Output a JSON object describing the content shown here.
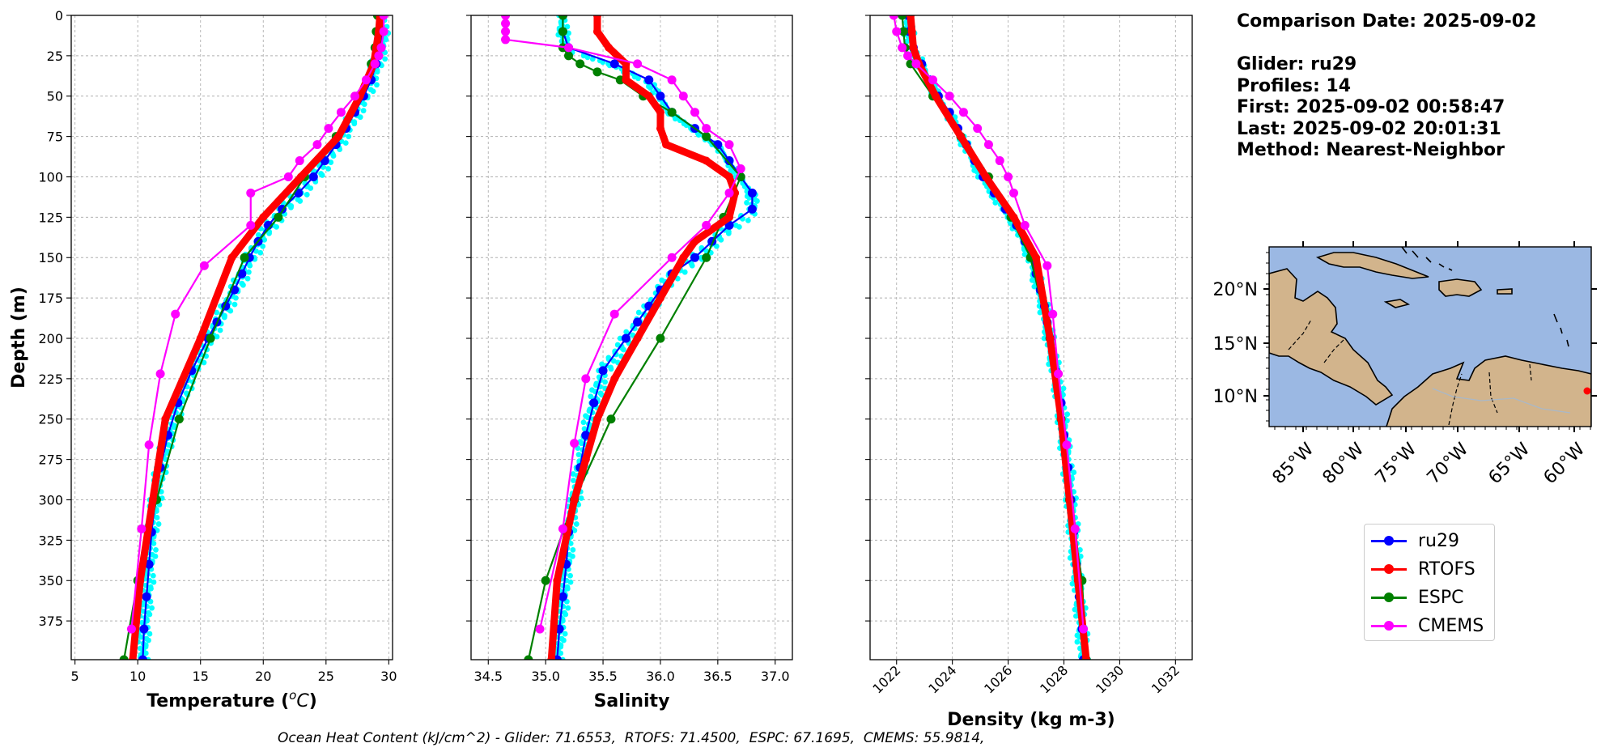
{
  "info": {
    "comparison_date": "Comparison Date: 2025-09-02",
    "glider": "Glider: ru29",
    "profiles": "Profiles: 14",
    "first": "First: 2025-09-02 00:58:47",
    "last": "Last: 2025-09-02 20:01:31",
    "method": "Method: Nearest-Neighbor"
  },
  "footer": "Ocean Heat Content (kJ/cm^2) - Glider: 71.6553,  RTOFS: 71.4500,  ESPC: 67.1695,  CMEMS: 55.9814,",
  "legend": [
    {
      "label": "ru29",
      "color": "#0000ff"
    },
    {
      "label": "RTOFS",
      "color": "#ff0000"
    },
    {
      "label": "ESPC",
      "color": "#008000"
    },
    {
      "label": "CMEMS",
      "color": "#ff00ff"
    }
  ],
  "colors": {
    "glider_raw": "#00ffff",
    "grid": "#b0b0b0",
    "ocean": "#9bb8e3",
    "land": "#d2b48c"
  },
  "chart_data": [
    {
      "type": "line",
      "xlabel": "Temperature ($^oC$)",
      "ylabel": "Depth (m)",
      "xlim": [
        4.7,
        30.3
      ],
      "ylim": [
        399,
        0
      ],
      "x_ticks": [
        "5",
        "10",
        "15",
        "20",
        "25",
        "30"
      ],
      "y_ticks": [
        "0",
        "25",
        "50",
        "75",
        "100",
        "125",
        "150",
        "175",
        "200",
        "225",
        "250",
        "275",
        "300",
        "325",
        "350",
        "375"
      ],
      "grid": true,
      "series": [
        {
          "name": "ru29",
          "depth": [
            0,
            10,
            20,
            30,
            40,
            50,
            60,
            70,
            80,
            90,
            100,
            110,
            120,
            130,
            140,
            150,
            160,
            170,
            180,
            190,
            200,
            220,
            240,
            260,
            280,
            300,
            320,
            340,
            360,
            380,
            399
          ],
          "values": [
            29.5,
            29.5,
            29.4,
            29.0,
            28.6,
            28.0,
            27.3,
            26.6,
            25.8,
            24.9,
            24.0,
            22.8,
            21.5,
            20.4,
            19.6,
            18.9,
            18.3,
            17.7,
            17.0,
            16.3,
            15.6,
            14.3,
            13.2,
            12.4,
            11.8,
            11.4,
            11.1,
            10.9,
            10.7,
            10.5,
            10.4
          ]
        },
        {
          "name": "RTOFS",
          "depth": [
            0,
            10,
            20,
            30,
            50,
            75,
            100,
            125,
            150,
            200,
            250,
            300,
            350,
            399
          ],
          "values": [
            29.3,
            29.2,
            29.0,
            28.8,
            27.7,
            26.0,
            23.0,
            20.0,
            17.5,
            15.0,
            12.2,
            11.2,
            10.2,
            9.6
          ]
        },
        {
          "name": "ESPC",
          "depth": [
            0,
            10,
            20,
            30,
            50,
            75,
            100,
            125,
            150,
            200,
            250,
            300,
            350,
            399
          ],
          "values": [
            29.1,
            29.0,
            28.9,
            28.6,
            27.5,
            25.8,
            23.3,
            21.2,
            18.5,
            15.8,
            13.3,
            11.5,
            10.0,
            8.9
          ]
        },
        {
          "name": "CMEMS",
          "depth": [
            0,
            10,
            20,
            25,
            30,
            40,
            50,
            60,
            70,
            80,
            90,
            100,
            110,
            130,
            155,
            185,
            222,
            266,
            318,
            380
          ],
          "values": [
            29.6,
            29.6,
            29.4,
            29.2,
            28.9,
            28.2,
            27.3,
            26.2,
            25.2,
            24.3,
            22.9,
            22.0,
            19.0,
            19.0,
            15.3,
            13.0,
            11.8,
            10.9,
            10.3,
            9.5
          ]
        }
      ]
    },
    {
      "type": "line",
      "xlabel": "Salinity",
      "ylabel": "",
      "xlim": [
        34.35,
        37.15
      ],
      "ylim": [
        399,
        0
      ],
      "x_ticks": [
        "34.5",
        "35.0",
        "35.5",
        "36.0",
        "36.5",
        "37.0"
      ],
      "grid": true,
      "series": [
        {
          "name": "ru29",
          "depth": [
            0,
            10,
            20,
            30,
            40,
            50,
            60,
            70,
            80,
            90,
            100,
            110,
            120,
            130,
            140,
            150,
            160,
            170,
            180,
            190,
            200,
            220,
            240,
            260,
            280,
            300,
            320,
            340,
            360,
            380,
            399
          ],
          "values": [
            35.15,
            35.15,
            35.2,
            35.6,
            35.9,
            36.0,
            36.1,
            36.3,
            36.5,
            36.6,
            36.7,
            36.8,
            36.8,
            36.6,
            36.45,
            36.3,
            36.1,
            36.0,
            35.9,
            35.8,
            35.7,
            35.5,
            35.42,
            35.35,
            35.3,
            35.25,
            35.2,
            35.18,
            35.15,
            35.12,
            35.1
          ]
        },
        {
          "name": "RTOFS",
          "depth": [
            0,
            10,
            20,
            30,
            40,
            50,
            60,
            70,
            80,
            90,
            100,
            110,
            125,
            140,
            150,
            175,
            200,
            225,
            250,
            275,
            300,
            350,
            399
          ],
          "values": [
            35.45,
            35.45,
            35.55,
            35.7,
            35.7,
            35.9,
            36.0,
            36.0,
            36.05,
            36.4,
            36.6,
            36.65,
            36.6,
            36.3,
            36.2,
            36.0,
            35.8,
            35.6,
            35.45,
            35.35,
            35.25,
            35.1,
            35.05
          ]
        },
        {
          "name": "ESPC",
          "depth": [
            0,
            10,
            20,
            25,
            30,
            35,
            40,
            50,
            60,
            75,
            100,
            125,
            150,
            200,
            250,
            300,
            350,
            399
          ],
          "values": [
            35.15,
            35.15,
            35.15,
            35.2,
            35.3,
            35.45,
            35.65,
            35.85,
            36.1,
            36.4,
            36.7,
            36.55,
            36.4,
            36.0,
            35.57,
            35.25,
            35.0,
            34.85
          ]
        },
        {
          "name": "CMEMS",
          "depth": [
            0,
            5,
            10,
            15,
            20,
            30,
            40,
            50,
            60,
            70,
            80,
            95,
            110,
            130,
            150,
            185,
            225,
            265,
            318,
            380
          ],
          "values": [
            34.65,
            34.65,
            34.65,
            34.65,
            35.2,
            35.8,
            36.1,
            36.2,
            36.3,
            36.4,
            36.6,
            36.7,
            36.6,
            36.4,
            36.1,
            35.6,
            35.35,
            35.25,
            35.15,
            34.95
          ]
        }
      ]
    },
    {
      "type": "line",
      "xlabel": "Density (kg m-3)",
      "ylabel": "",
      "xlim": [
        1021.05,
        1032.6
      ],
      "ylim": [
        399,
        0
      ],
      "x_ticks": [
        "1022",
        "1024",
        "1026",
        "1028",
        "1030",
        "1032"
      ],
      "grid": true,
      "series": [
        {
          "name": "ru29",
          "depth": [
            0,
            10,
            20,
            30,
            40,
            50,
            60,
            70,
            80,
            90,
            100,
            110,
            120,
            130,
            140,
            150,
            160,
            170,
            180,
            190,
            200,
            220,
            240,
            260,
            280,
            300,
            320,
            340,
            360,
            380,
            399
          ],
          "values": [
            1022.4,
            1022.45,
            1022.6,
            1022.9,
            1023.2,
            1023.5,
            1023.9,
            1024.2,
            1024.5,
            1024.8,
            1025.1,
            1025.5,
            1025.9,
            1026.3,
            1026.6,
            1026.85,
            1027.0,
            1027.15,
            1027.3,
            1027.4,
            1027.5,
            1027.7,
            1027.9,
            1028.0,
            1028.15,
            1028.25,
            1028.35,
            1028.45,
            1028.55,
            1028.65,
            1028.7
          ]
        },
        {
          "name": "RTOFS",
          "depth": [
            0,
            10,
            20,
            30,
            50,
            75,
            100,
            125,
            150,
            200,
            250,
            300,
            350,
            399
          ],
          "values": [
            1022.5,
            1022.55,
            1022.6,
            1022.8,
            1023.4,
            1024.3,
            1025.2,
            1026.2,
            1027.0,
            1027.5,
            1027.9,
            1028.2,
            1028.5,
            1028.8
          ]
        },
        {
          "name": "ESPC",
          "depth": [
            0,
            10,
            20,
            30,
            50,
            75,
            100,
            125,
            150,
            200,
            250,
            300,
            350,
            399
          ],
          "values": [
            1022.2,
            1022.25,
            1022.3,
            1022.5,
            1023.3,
            1024.3,
            1025.3,
            1026.1,
            1026.8,
            1027.5,
            1027.9,
            1028.2,
            1028.65,
            1028.8
          ]
        },
        {
          "name": "CMEMS",
          "depth": [
            0,
            10,
            20,
            25,
            30,
            40,
            50,
            60,
            70,
            80,
            90,
            100,
            110,
            130,
            155,
            185,
            222,
            266,
            318,
            380
          ],
          "values": [
            1021.9,
            1022.0,
            1022.2,
            1022.4,
            1022.7,
            1023.3,
            1023.9,
            1024.4,
            1024.9,
            1025.3,
            1025.7,
            1026.0,
            1026.2,
            1026.6,
            1027.4,
            1027.6,
            1027.8,
            1028.1,
            1028.4,
            1028.7
          ]
        }
      ]
    }
  ],
  "map": {
    "lon_ticks": [
      "85°W",
      "80°W",
      "75°W",
      "70°W",
      "65°W",
      "60°W"
    ],
    "lat_ticks": [
      "20°N",
      "15°N",
      "10°N"
    ]
  }
}
